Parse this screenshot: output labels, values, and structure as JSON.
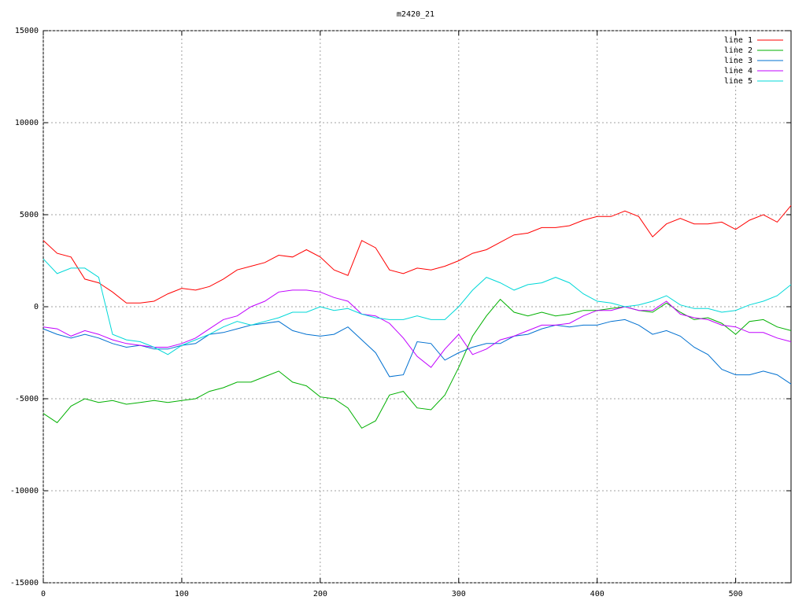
{
  "chart_data": {
    "type": "line",
    "title": "m2420_21",
    "x": [
      0,
      10,
      20,
      30,
      40,
      50,
      60,
      70,
      80,
      90,
      100,
      110,
      120,
      130,
      140,
      150,
      160,
      170,
      180,
      190,
      200,
      210,
      220,
      230,
      240,
      250,
      260,
      270,
      280,
      290,
      300,
      310,
      320,
      330,
      340,
      350,
      360,
      370,
      380,
      390,
      400,
      410,
      420,
      430,
      440,
      450,
      460,
      470,
      480,
      490,
      500,
      510,
      520,
      530,
      540
    ],
    "series": [
      {
        "name": "line 1",
        "color": "#ff0000",
        "values": [
          3600,
          2900,
          2700,
          1500,
          1300,
          800,
          200,
          200,
          300,
          700,
          1000,
          900,
          1100,
          1500,
          2000,
          2200,
          2400,
          2800,
          2700,
          3100,
          2700,
          2000,
          1700,
          3600,
          3200,
          2000,
          1800,
          2100,
          2000,
          2200,
          2500,
          2900,
          3100,
          3500,
          3900,
          4000,
          4300,
          4300,
          4400,
          4700,
          4900,
          4900,
          5200,
          4900,
          3800,
          4500,
          4800,
          4500,
          4500,
          4600,
          4200,
          4700,
          5000,
          4600,
          5500
        ]
      },
      {
        "name": "line 2",
        "color": "#00b000",
        "values": [
          -5800,
          -6300,
          -5400,
          -5000,
          -5200,
          -5100,
          -5300,
          -5200,
          -5100,
          -5200,
          -5100,
          -5000,
          -4600,
          -4400,
          -4100,
          -4100,
          -3800,
          -3500,
          -4100,
          -4300,
          -4900,
          -5000,
          -5500,
          -6600,
          -6200,
          -4800,
          -4600,
          -5500,
          -5600,
          -4800,
          -3300,
          -1600,
          -500,
          400,
          -300,
          -500,
          -300,
          -500,
          -400,
          -200,
          -200,
          -100,
          0,
          -200,
          -300,
          200,
          -300,
          -700,
          -600,
          -900,
          -1500,
          -800,
          -700,
          -1100,
          -1300
        ]
      },
      {
        "name": "line 3",
        "color": "#0070d0",
        "values": [
          -1200,
          -1500,
          -1700,
          -1500,
          -1700,
          -2000,
          -2200,
          -2100,
          -2300,
          -2300,
          -2100,
          -2000,
          -1500,
          -1400,
          -1200,
          -1000,
          -900,
          -800,
          -1300,
          -1500,
          -1600,
          -1500,
          -1100,
          -1800,
          -2500,
          -3800,
          -3700,
          -1900,
          -2000,
          -2900,
          -2500,
          -2200,
          -2000,
          -2000,
          -1600,
          -1500,
          -1200,
          -1000,
          -1100,
          -1000,
          -1000,
          -800,
          -700,
          -1000,
          -1500,
          -1300,
          -1600,
          -2200,
          -2600,
          -3400,
          -3700,
          -3700,
          -3500,
          -3700,
          -4200
        ]
      },
      {
        "name": "line 4",
        "color": "#c000ff",
        "values": [
          -1100,
          -1200,
          -1600,
          -1300,
          -1500,
          -1800,
          -2000,
          -2100,
          -2200,
          -2200,
          -2000,
          -1700,
          -1200,
          -700,
          -500,
          0,
          300,
          800,
          900,
          900,
          800,
          500,
          300,
          -400,
          -500,
          -900,
          -1700,
          -2700,
          -3300,
          -2300,
          -1500,
          -2600,
          -2300,
          -1800,
          -1600,
          -1300,
          -1000,
          -1000,
          -900,
          -500,
          -200,
          -200,
          0,
          -200,
          -200,
          300,
          -400,
          -600,
          -700,
          -1000,
          -1100,
          -1400,
          -1400,
          -1700,
          -1900
        ]
      },
      {
        "name": "line 5",
        "color": "#00d8d8",
        "values": [
          2600,
          1800,
          2100,
          2100,
          1600,
          -1500,
          -1800,
          -1900,
          -2200,
          -2600,
          -2100,
          -1800,
          -1500,
          -1100,
          -800,
          -1000,
          -800,
          -600,
          -300,
          -300,
          0,
          -200,
          -100,
          -400,
          -600,
          -700,
          -700,
          -500,
          -700,
          -700,
          0,
          900,
          1600,
          1300,
          900,
          1200,
          1300,
          1600,
          1300,
          700,
          300,
          200,
          0,
          100,
          300,
          600,
          100,
          -100,
          -100,
          -300,
          -200,
          100,
          300,
          600,
          1200
        ]
      }
    ],
    "xlim": [
      0,
      540
    ],
    "xticks": [
      0,
      100,
      200,
      300,
      400,
      500
    ],
    "ylim": [
      -15000,
      15000
    ],
    "yticks": [
      -15000,
      -10000,
      -5000,
      0,
      5000,
      10000,
      15000
    ],
    "grid": true,
    "legend": "top-right"
  }
}
